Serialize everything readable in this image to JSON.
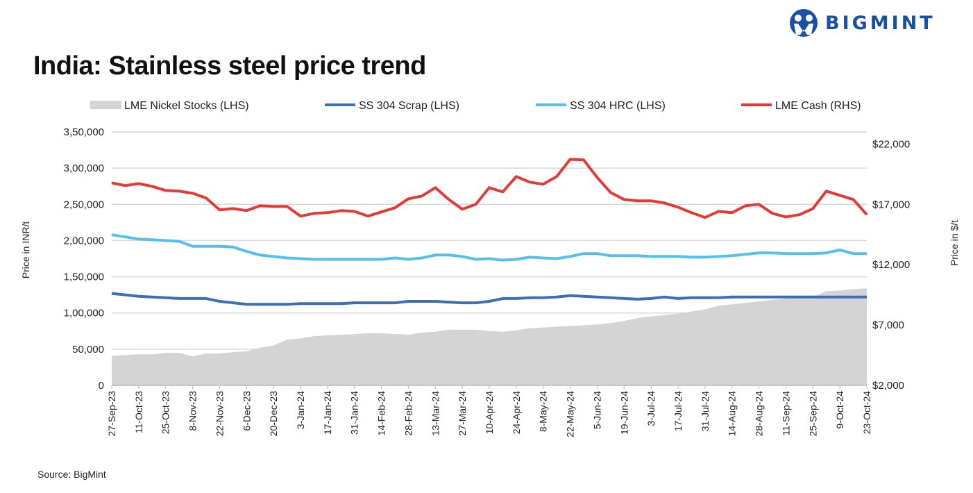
{
  "title": "India: Stainless steel price trend",
  "logo": {
    "text": "BIGMINT",
    "color": "#1a4fa8"
  },
  "source": "Source: BigMint",
  "chart_data": {
    "type": "line",
    "title": "India: Stainless steel price trend",
    "ylabel_left": "Price in INR/t",
    "ylabel_right": "Price in $/t",
    "ylim_left": [
      0,
      350000
    ],
    "ylim_right": [
      2000,
      23000
    ],
    "yticks_left": [
      "0",
      "50,000",
      "1,00,000",
      "1,50,000",
      "2,00,000",
      "2,50,000",
      "3,00,000",
      "3,50,000"
    ],
    "yticks_left_values": [
      0,
      50000,
      100000,
      150000,
      200000,
      250000,
      300000,
      350000
    ],
    "yticks_right": [
      "$2,000",
      "$7,000",
      "$12,000",
      "$17,000",
      "$22,000"
    ],
    "yticks_right_values": [
      2000,
      7000,
      12000,
      17000,
      22000
    ],
    "grid": true,
    "legend_position": "top",
    "x_start": "2023-09-27",
    "x_end": "2024-10-23",
    "xticks": [
      "27-Sep-23",
      "11-Oct-23",
      "25-Oct-23",
      "8-Nov-23",
      "22-Nov-23",
      "6-Dec-23",
      "20-Dec-23",
      "3-Jan-24",
      "17-Jan-24",
      "31-Jan-24",
      "14-Feb-24",
      "28-Feb-24",
      "13-Mar-24",
      "27-Mar-24",
      "10-Apr-24",
      "24-Apr-24",
      "8-May-24",
      "22-May-24",
      "5-Jun-24",
      "19-Jun-24",
      "3-Jul-24",
      "17-Jul-24",
      "31-Jul-24",
      "14-Aug-24",
      "28-Aug-24",
      "11-Sep-24",
      "25-Sep-24",
      "9-Oct-24",
      "23-Oct-24"
    ],
    "x": [
      "2023-09-27",
      "2023-10-04",
      "2023-10-11",
      "2023-10-18",
      "2023-10-25",
      "2023-11-01",
      "2023-11-08",
      "2023-11-15",
      "2023-11-22",
      "2023-11-29",
      "2023-12-06",
      "2023-12-13",
      "2023-12-20",
      "2023-12-27",
      "2024-01-03",
      "2024-01-10",
      "2024-01-17",
      "2024-01-24",
      "2024-01-31",
      "2024-02-07",
      "2024-02-14",
      "2024-02-21",
      "2024-02-28",
      "2024-03-06",
      "2024-03-13",
      "2024-03-20",
      "2024-03-27",
      "2024-04-03",
      "2024-04-10",
      "2024-04-17",
      "2024-04-24",
      "2024-05-01",
      "2024-05-08",
      "2024-05-15",
      "2024-05-22",
      "2024-05-29",
      "2024-06-05",
      "2024-06-12",
      "2024-06-19",
      "2024-06-26",
      "2024-07-03",
      "2024-07-10",
      "2024-07-17",
      "2024-07-24",
      "2024-07-31",
      "2024-08-07",
      "2024-08-14",
      "2024-08-21",
      "2024-08-28",
      "2024-09-04",
      "2024-09-11",
      "2024-09-18",
      "2024-09-25",
      "2024-10-02",
      "2024-10-09",
      "2024-10-16",
      "2024-10-23"
    ],
    "series": [
      {
        "name": "LME Nickel Stocks (LHS)",
        "kind": "area",
        "axis": "left",
        "color": "#d4d4d4",
        "values": [
          41000,
          42000,
          43000,
          43000,
          45000,
          45000,
          40000,
          44000,
          44000,
          46000,
          47000,
          52000,
          55000,
          63000,
          65000,
          68000,
          69000,
          70000,
          71000,
          72000,
          72000,
          71000,
          70000,
          73000,
          74000,
          77000,
          77000,
          77000,
          75000,
          74000,
          76000,
          79000,
          80000,
          81000,
          82000,
          83000,
          84000,
          86000,
          89000,
          93000,
          95000,
          97000,
          99000,
          102000,
          105000,
          110000,
          112000,
          114000,
          116000,
          118000,
          120000,
          121000,
          122000,
          130000,
          131000,
          133000,
          134000
        ]
      },
      {
        "name": "SS 304 Scrap (LHS)",
        "kind": "line",
        "axis": "left",
        "color": "#3c6fb6",
        "values": [
          127000,
          125000,
          123000,
          122000,
          121000,
          120000,
          120000,
          120000,
          116000,
          114000,
          112000,
          112000,
          112000,
          112000,
          113000,
          113000,
          113000,
          113000,
          114000,
          114000,
          114000,
          114000,
          116000,
          116000,
          116000,
          115000,
          114000,
          114000,
          116000,
          120000,
          120000,
          121000,
          121000,
          122000,
          124000,
          123000,
          122000,
          121000,
          120000,
          119000,
          120000,
          122000,
          120000,
          121000,
          121000,
          121000,
          122000,
          122000,
          122000,
          122000,
          122000,
          122000,
          122000,
          122000,
          122000,
          122000,
          122000
        ]
      },
      {
        "name": "SS 304 HRC (LHS)",
        "kind": "line",
        "axis": "left",
        "color": "#56bfec",
        "values": [
          208000,
          205000,
          202000,
          201000,
          200000,
          199000,
          192000,
          192000,
          192000,
          191000,
          185000,
          180000,
          178000,
          176000,
          175000,
          174000,
          174000,
          174000,
          174000,
          174000,
          174000,
          176000,
          174000,
          176000,
          180000,
          180000,
          178000,
          174000,
          175000,
          173000,
          174000,
          177000,
          176000,
          175000,
          178000,
          182000,
          182000,
          179000,
          179000,
          179000,
          178000,
          178000,
          178000,
          177000,
          177000,
          178000,
          179000,
          181000,
          183000,
          183000,
          182000,
          182000,
          182000,
          183000,
          187000,
          182000,
          182000
        ]
      },
      {
        "name": "LME Cash (RHS)",
        "kind": "line",
        "axis": "right",
        "color": "#e53935",
        "values": [
          18780,
          18550,
          18720,
          18490,
          18150,
          18090,
          17920,
          17520,
          16540,
          16650,
          16480,
          16880,
          16830,
          16830,
          16020,
          16250,
          16310,
          16480,
          16420,
          16020,
          16370,
          16710,
          17460,
          17690,
          18380,
          17400,
          16600,
          17000,
          18380,
          18030,
          19300,
          18840,
          18670,
          19300,
          20730,
          20680,
          19240,
          17980,
          17400,
          17290,
          17290,
          17110,
          16770,
          16310,
          15910,
          16420,
          16310,
          16880,
          17000,
          16250,
          15960,
          16140,
          16650,
          18090,
          17750,
          17400,
          16140
        ]
      }
    ]
  }
}
